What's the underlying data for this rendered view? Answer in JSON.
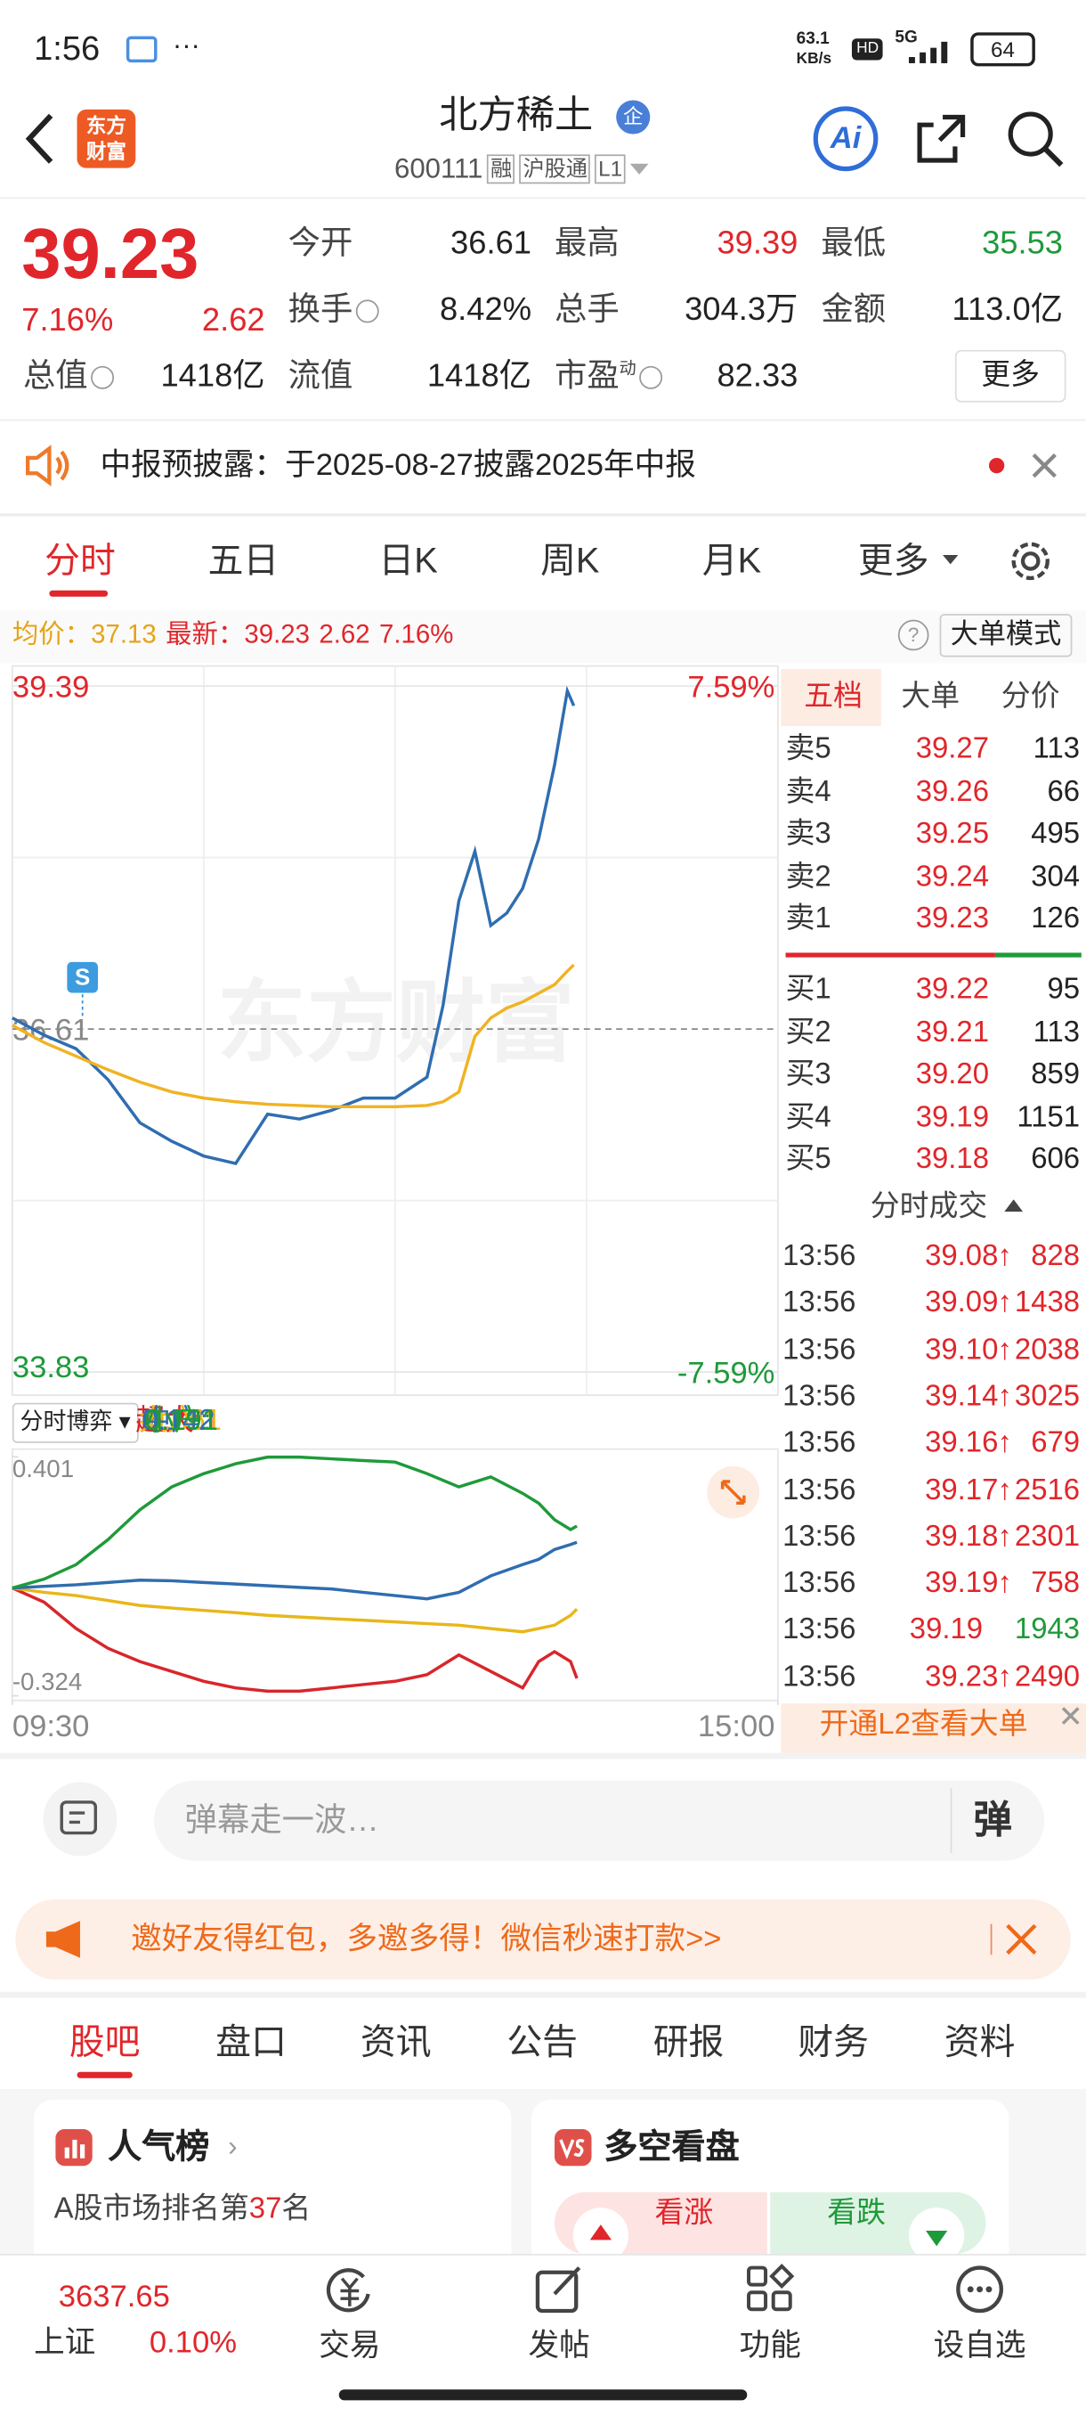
{
  "status": {
    "time": "1:56",
    "net_speed": "63.1",
    "net_unit": "KB/s",
    "network": "5G",
    "battery": "64"
  },
  "header": {
    "logo": [
      "东方",
      "财富"
    ],
    "title": "北方稀土",
    "badge": "企",
    "code": "600111",
    "tags": [
      "融",
      "沪股通",
      "L1"
    ],
    "ai": "Ai"
  },
  "quote": {
    "price": "39.23",
    "change_pct": "7.16%",
    "change": "2.62",
    "more": "更多",
    "fields": [
      {
        "label": "今开",
        "value": "36.61",
        "tone": "flat"
      },
      {
        "label": "最高",
        "value": "39.39",
        "tone": "up"
      },
      {
        "label": "最低",
        "value": "35.53",
        "tone": "down"
      },
      {
        "label": "换手",
        "value": "8.42%",
        "tone": "flat",
        "info": true
      },
      {
        "label": "总手",
        "value": "304.3万",
        "tone": "flat"
      },
      {
        "label": "金额",
        "value": "113.0亿",
        "tone": "flat"
      },
      {
        "label": "总值",
        "value": "1418亿",
        "tone": "flat",
        "info": true
      },
      {
        "label": "流值",
        "value": "1418亿",
        "tone": "flat"
      },
      {
        "label": "市盈",
        "sup": "动",
        "value": "82.33",
        "tone": "flat",
        "info": true
      }
    ]
  },
  "notice": "中报预披露：于2025-08-27披露2025年中报",
  "tabs": [
    "分时",
    "五日",
    "日K",
    "周K",
    "月K",
    "更多"
  ],
  "big_order_mode": "大单模式",
  "chart_data": [
    {
      "type": "line",
      "watermark": "东方财富",
      "xlim": [
        0,
        240
      ],
      "ylim": [
        33.83,
        39.39
      ],
      "yticks": [
        33.83,
        36.61,
        39.39
      ],
      "y2lim": [
        -7.59,
        7.59
      ],
      "y2ticks": [
        {
          "value": -7.59,
          "label": "-7.59%"
        },
        {
          "value": 7.59,
          "label": "7.59%"
        }
      ],
      "markers": [
        {
          "x": 22,
          "label": "S"
        }
      ],
      "x": [
        0,
        10,
        20,
        30,
        40,
        50,
        60,
        70,
        80,
        90,
        100,
        110,
        120,
        130,
        135,
        140,
        145,
        150,
        155,
        160,
        165,
        170,
        174,
        176
      ],
      "series": [
        {
          "name": "最新：",
          "color": "#2f6db0",
          "values": [
            36.7,
            36.56,
            36.45,
            36.2,
            35.85,
            35.7,
            35.58,
            35.52,
            35.92,
            35.88,
            35.95,
            36.05,
            36.05,
            36.22,
            36.8,
            37.65,
            38.05,
            37.45,
            37.55,
            37.75,
            38.15,
            38.75,
            39.35,
            39.23
          ]
        },
        {
          "name": "均价：",
          "color": "#f0b323",
          "values": [
            36.64,
            36.5,
            36.39,
            36.28,
            36.18,
            36.1,
            36.05,
            36.02,
            36.0,
            35.99,
            35.98,
            35.98,
            35.98,
            35.99,
            36.02,
            36.1,
            36.55,
            36.7,
            36.78,
            36.83,
            36.9,
            36.97,
            37.08,
            37.13
          ]
        }
      ]
    },
    {
      "type": "line",
      "title": "分时博弈",
      "xlim": [
        0,
        240
      ],
      "ylim": [
        -0.324,
        0.401
      ],
      "yticks": [
        -0.324,
        0.401
      ],
      "xticks": [
        {
          "value": 0,
          "label": "09:30"
        },
        {
          "value": 240,
          "label": "15:00"
        }
      ],
      "x": [
        0,
        10,
        20,
        30,
        40,
        50,
        60,
        70,
        80,
        90,
        100,
        110,
        120,
        130,
        140,
        150,
        160,
        165,
        170,
        175,
        177
      ],
      "series": [
        {
          "name": "超大:",
          "color": "#d8262b",
          "values": [
            0.003,
            -0.04,
            -0.12,
            -0.18,
            -0.22,
            -0.25,
            -0.28,
            -0.3,
            -0.31,
            -0.31,
            -0.3,
            -0.29,
            -0.28,
            -0.26,
            -0.2,
            -0.25,
            -0.3,
            -0.22,
            -0.19,
            -0.22,
            -0.271
          ]
        },
        {
          "name": "大户:",
          "color": "#e8b71a",
          "values": [
            0.003,
            -0.01,
            -0.02,
            -0.035,
            -0.05,
            -0.058,
            -0.065,
            -0.072,
            -0.08,
            -0.085,
            -0.09,
            -0.095,
            -0.1,
            -0.105,
            -0.11,
            -0.12,
            -0.13,
            -0.12,
            -0.11,
            -0.08,
            -0.061
          ]
        },
        {
          "name": "中户:",
          "color": "#2f6db0",
          "values": [
            0.003,
            0.008,
            0.013,
            0.02,
            0.027,
            0.025,
            0.02,
            0.015,
            0.01,
            0.005,
            0.0,
            -0.01,
            -0.02,
            -0.03,
            -0.01,
            0.04,
            0.074,
            0.09,
            0.12,
            0.135,
            0.142
          ]
        },
        {
          "name": "小户:",
          "color": "#1f9a3a",
          "values": [
            0.003,
            0.03,
            0.074,
            0.15,
            0.24,
            0.31,
            0.35,
            0.38,
            0.4,
            0.4,
            0.395,
            0.39,
            0.385,
            0.35,
            0.31,
            0.34,
            0.29,
            0.26,
            0.21,
            0.18,
            0.191
          ]
        }
      ]
    }
  ],
  "order_book": {
    "tabs": [
      "五档",
      "大单",
      "分价"
    ],
    "asks": [
      {
        "label": "卖5",
        "price": "39.27",
        "volume": "113"
      },
      {
        "label": "卖4",
        "price": "39.26",
        "volume": "66"
      },
      {
        "label": "卖3",
        "price": "39.25",
        "volume": "495"
      },
      {
        "label": "卖2",
        "price": "39.24",
        "volume": "304"
      },
      {
        "label": "卖1",
        "price": "39.23",
        "volume": "126"
      }
    ],
    "bids": [
      {
        "label": "买1",
        "price": "39.22",
        "volume": "95"
      },
      {
        "label": "买2",
        "price": "39.21",
        "volume": "113"
      },
      {
        "label": "买3",
        "price": "39.20",
        "volume": "859"
      },
      {
        "label": "买4",
        "price": "39.19",
        "volume": "1151"
      },
      {
        "label": "买5",
        "price": "39.18",
        "volume": "606"
      }
    ],
    "trades_title": "分时成交",
    "trades": [
      {
        "time": "13:56",
        "price": "39.08",
        "dir": "↑",
        "volume": "828"
      },
      {
        "time": "13:56",
        "price": "39.09",
        "dir": "↑",
        "volume": "1438"
      },
      {
        "time": "13:56",
        "price": "39.10",
        "dir": "↑",
        "volume": "2038"
      },
      {
        "time": "13:56",
        "price": "39.14",
        "dir": "↑",
        "volume": "3025"
      },
      {
        "time": "13:56",
        "price": "39.16",
        "dir": "↑",
        "volume": "679"
      },
      {
        "time": "13:56",
        "price": "39.17",
        "dir": "↑",
        "volume": "2516"
      },
      {
        "time": "13:56",
        "price": "39.18",
        "dir": "↑",
        "volume": "2301"
      },
      {
        "time": "13:56",
        "price": "39.19",
        "dir": "↑",
        "volume": "758"
      },
      {
        "time": "13:56",
        "price": "39.19",
        "volume": "1943"
      },
      {
        "time": "13:56",
        "price": "39.23",
        "dir": "↑",
        "volume": "2490"
      }
    ],
    "l2": "开通L2查看大单"
  },
  "chat": {
    "placeholder": "弹幕走一波…",
    "button": "弹"
  },
  "banner": "邀好友得红包，多邀多得！微信秒速打款>>",
  "sub_tabs": [
    "股吧",
    "盘口",
    "资讯",
    "公告",
    "研报",
    "财务",
    "资料"
  ],
  "cards": {
    "rank_title": "人气榜",
    "rank_prefix": "A股市场排名第",
    "rank": "37",
    "rank_suffix": "名",
    "vote_title": "多空看盘",
    "up": "看涨",
    "down": "看跌"
  },
  "bottom": {
    "index_value": "3637.65",
    "index_name": "上证",
    "index_pct": "0.10%",
    "nav": [
      "交易",
      "发帖",
      "功能",
      "设自选"
    ]
  }
}
